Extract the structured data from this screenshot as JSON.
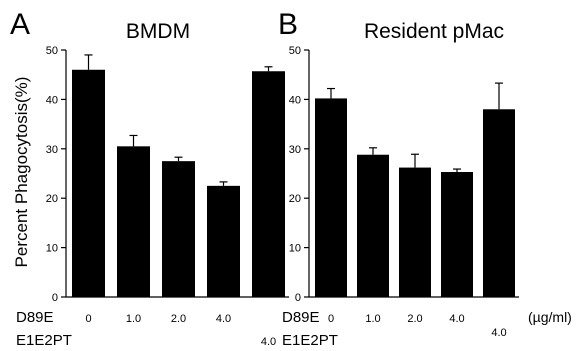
{
  "row_labels": [
    "D89E",
    "E1E2PT"
  ],
  "unit": "(µg/ml)",
  "chart_data": [
    {
      "type": "bar",
      "panel": "A",
      "title": "BMDM",
      "ylabel": "Percent Phagocytosis(%)",
      "xlabel": "",
      "ylim": [
        0,
        50
      ],
      "yticks": [
        "0",
        "10",
        "20",
        "30",
        "40",
        "50"
      ],
      "categories": [
        {
          "d89e": "0",
          "e1e2pt": ""
        },
        {
          "d89e": "1.0",
          "e1e2pt": ""
        },
        {
          "d89e": "2.0",
          "e1e2pt": ""
        },
        {
          "d89e": "4.0",
          "e1e2pt": ""
        },
        {
          "d89e": "",
          "e1e2pt": "4.0"
        }
      ],
      "values": [
        46.0,
        30.5,
        27.5,
        22.5,
        45.7
      ],
      "errors": [
        3.0,
        2.2,
        0.8,
        0.8,
        0.9
      ],
      "grid": false,
      "bar_color": "#000000"
    },
    {
      "type": "bar",
      "panel": "B",
      "title": "Resident pMac",
      "ylabel": "",
      "xlabel": "",
      "ylim": [
        0,
        50
      ],
      "yticks": [
        "0",
        "10",
        "20",
        "30",
        "40",
        "50"
      ],
      "categories": [
        {
          "d89e": "0",
          "e1e2pt": ""
        },
        {
          "d89e": "1.0",
          "e1e2pt": ""
        },
        {
          "d89e": "2.0",
          "e1e2pt": ""
        },
        {
          "d89e": "4.0",
          "e1e2pt": ""
        },
        {
          "d89e": "",
          "e1e2pt": "4.0"
        }
      ],
      "values": [
        40.2,
        28.8,
        26.2,
        25.3,
        38.0
      ],
      "errors": [
        2.0,
        1.4,
        2.7,
        0.6,
        5.3
      ],
      "grid": false,
      "bar_color": "#000000"
    }
  ]
}
